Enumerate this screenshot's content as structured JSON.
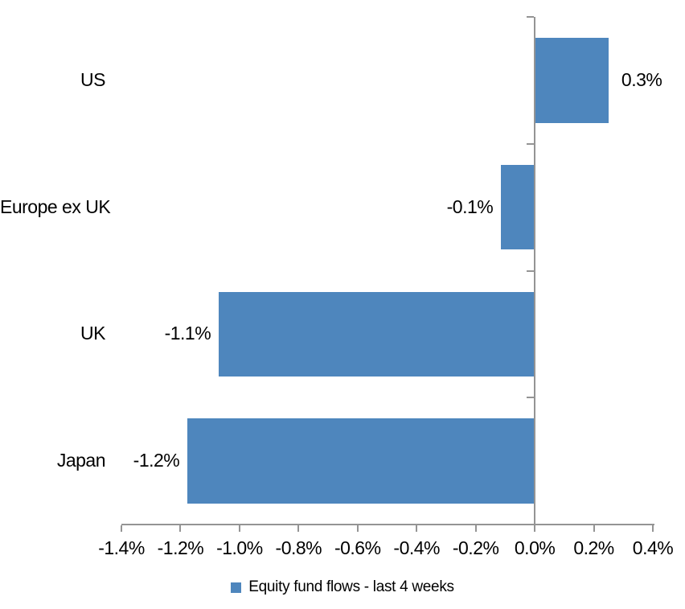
{
  "chart_data": {
    "type": "bar",
    "orientation": "horizontal",
    "title": "",
    "xlabel": "",
    "ylabel": "",
    "categories": [
      "US",
      "Europe ex UK",
      "UK",
      "Japan"
    ],
    "series": [
      {
        "name": "Equity fund flows - last 4 weeks",
        "values": [
          0.3,
          -0.1,
          -1.1,
          -1.2
        ],
        "values_precise": [
          0.25,
          -0.114,
          -1.07,
          -1.176
        ],
        "data_labels": [
          "0.3%",
          "-0.1%",
          "-1.1%",
          "-1.2%"
        ]
      }
    ],
    "xlim": [
      -1.4,
      0.4
    ],
    "x_tick_values": [
      -1.4,
      -1.2,
      -1.0,
      -0.8,
      -0.6,
      -0.4,
      -0.2,
      0.0,
      0.2,
      0.4
    ],
    "x_tick_labels": [
      "-1.4%",
      "-1.2%",
      "-1.0%",
      "-0.8%",
      "-0.6%",
      "-0.4%",
      "-0.2%",
      "0.0%",
      "0.2%",
      "0.4%"
    ],
    "grid": false,
    "legend": {
      "position": "bottom-center",
      "entries": [
        "Equity fund flows - last 4 weeks"
      ]
    },
    "colors": {
      "bar": "#4E86BD",
      "axis": "#949494",
      "text": "#000000",
      "background": "#FFFFFF"
    }
  }
}
